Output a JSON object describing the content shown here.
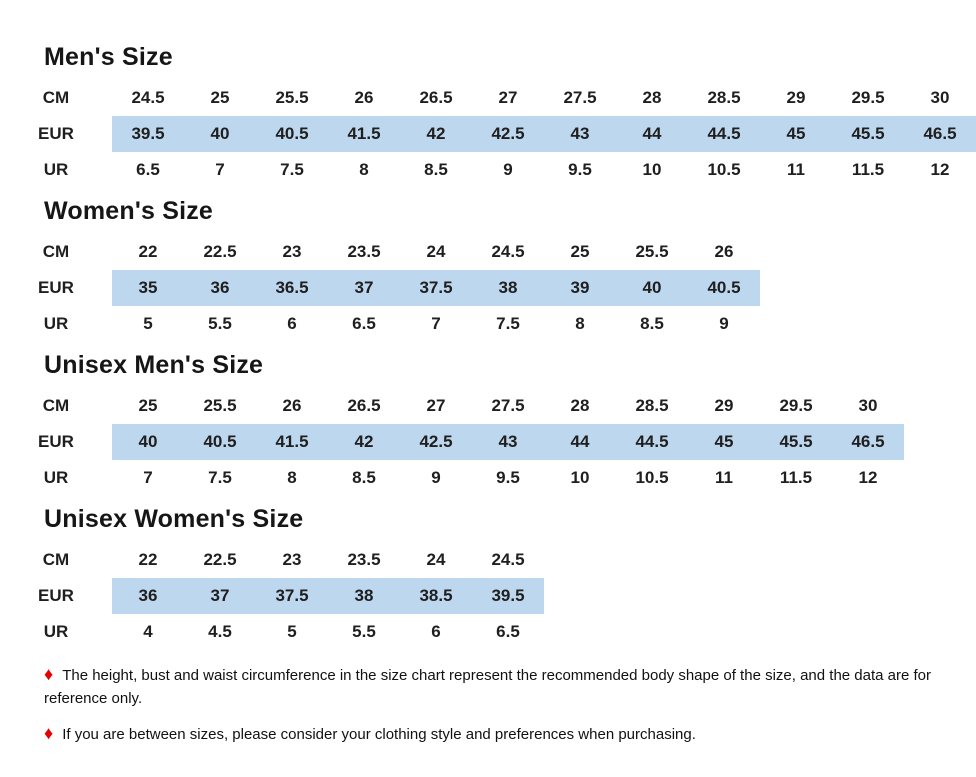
{
  "page": {
    "background_color": "#ffffff",
    "highlight_color": "#bdd7ee",
    "bullet_color": "#e60000",
    "bullet_glyph": "♦"
  },
  "tables": [
    {
      "title": "Men's Size",
      "rows": [
        {
          "label": "CM",
          "highlight": false,
          "values": [
            "24.5",
            "25",
            "25.5",
            "26",
            "26.5",
            "27",
            "27.5",
            "28",
            "28.5",
            "29",
            "29.5",
            "30"
          ]
        },
        {
          "label": "EUR",
          "highlight": true,
          "values": [
            "39.5",
            "40",
            "40.5",
            "41.5",
            "42",
            "42.5",
            "43",
            "44",
            "44.5",
            "45",
            "45.5",
            "46.5"
          ]
        },
        {
          "label": "UR",
          "highlight": false,
          "values": [
            "6.5",
            "7",
            "7.5",
            "8",
            "8.5",
            "9",
            "9.5",
            "10",
            "10.5",
            "11",
            "11.5",
            "12"
          ]
        }
      ]
    },
    {
      "title": "Women's Size",
      "rows": [
        {
          "label": "CM",
          "highlight": false,
          "values": [
            "22",
            "22.5",
            "23",
            "23.5",
            "24",
            "24.5",
            "25",
            "25.5",
            "26"
          ]
        },
        {
          "label": "EUR",
          "highlight": true,
          "values": [
            "35",
            "36",
            "36.5",
            "37",
            "37.5",
            "38",
            "39",
            "40",
            "40.5"
          ]
        },
        {
          "label": "UR",
          "highlight": false,
          "values": [
            "5",
            "5.5",
            "6",
            "6.5",
            "7",
            "7.5",
            "8",
            "8.5",
            "9"
          ]
        }
      ]
    },
    {
      "title": "Unisex Men's Size",
      "rows": [
        {
          "label": "CM",
          "highlight": false,
          "values": [
            "25",
            "25.5",
            "26",
            "26.5",
            "27",
            "27.5",
            "28",
            "28.5",
            "29",
            "29.5",
            "30"
          ]
        },
        {
          "label": "EUR",
          "highlight": true,
          "values": [
            "40",
            "40.5",
            "41.5",
            "42",
            "42.5",
            "43",
            "44",
            "44.5",
            "45",
            "45.5",
            "46.5"
          ]
        },
        {
          "label": "UR",
          "highlight": false,
          "values": [
            "7",
            "7.5",
            "8",
            "8.5",
            "9",
            "9.5",
            "10",
            "10.5",
            "11",
            "11.5",
            "12"
          ]
        }
      ]
    },
    {
      "title": "Unisex Women's Size",
      "rows": [
        {
          "label": "CM",
          "highlight": false,
          "values": [
            "22",
            "22.5",
            "23",
            "23.5",
            "24",
            "24.5"
          ]
        },
        {
          "label": "EUR",
          "highlight": true,
          "values": [
            "36",
            "37",
            "37.5",
            "38",
            "38.5",
            "39.5"
          ]
        },
        {
          "label": "UR",
          "highlight": false,
          "values": [
            "4",
            "4.5",
            "5",
            "5.5",
            "6",
            "6.5"
          ]
        }
      ]
    }
  ],
  "notes": [
    {
      "text": "The height, bust and waist circumference in the size chart represent the recommended body shape of the size, and the data are for reference only."
    },
    {
      "text": "If you are between sizes, please consider your clothing style and preferences when purchasing."
    }
  ]
}
